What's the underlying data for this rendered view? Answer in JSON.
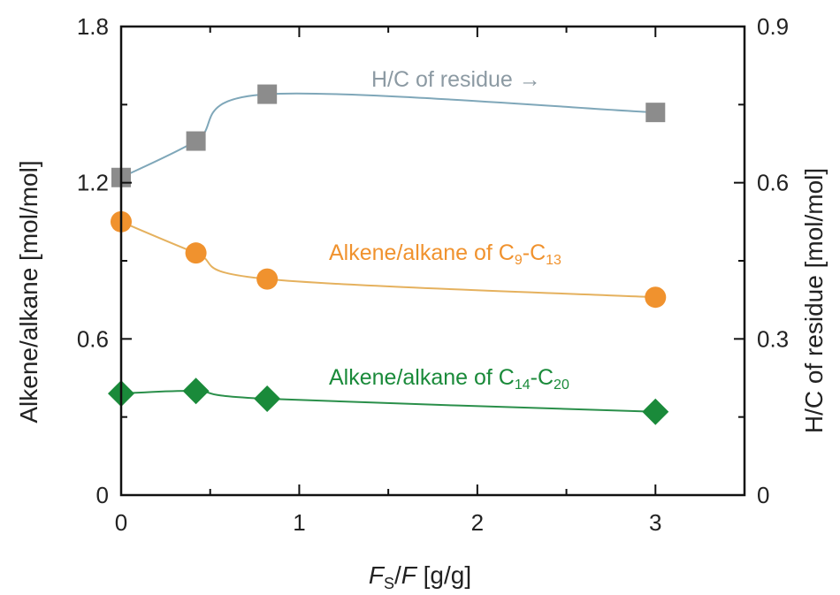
{
  "chart_data": {
    "type": "scatter",
    "x": [
      0,
      0.42,
      0.82,
      3
    ],
    "xlim": [
      0,
      3.5
    ],
    "x_ticks": [
      "0",
      "1",
      "2",
      "3"
    ],
    "ylim_left": [
      0,
      1.8
    ],
    "y_left_ticks": [
      "0",
      "0.6",
      "1.2",
      "1.8"
    ],
    "ylim_right": [
      0,
      0.9
    ],
    "y_right_ticks": [
      "0",
      "0.3",
      "0.6",
      "0.9"
    ],
    "xlabel": {
      "italic1": "F",
      "sub": "S",
      "slash": "/",
      "italic2": "F",
      "rest": " [g/g]"
    },
    "ylabel_left": "Alkene/alkane [mol/mol]",
    "ylabel_right": "H/C of residue [mol/mol]",
    "grid": false,
    "series": [
      {
        "name": "H/C of residue",
        "axis": "right",
        "marker": "square",
        "color": "#8c8c8c",
        "line_color": "#7fa7b9",
        "values": [
          0.61,
          0.68,
          0.77,
          0.735
        ]
      },
      {
        "name": "Alkene/alkane of C9-C13",
        "axis": "left",
        "marker": "circle",
        "color": "#f0922e",
        "line_color": "#e5b15e",
        "values": [
          1.05,
          0.93,
          0.83,
          0.76
        ]
      },
      {
        "name": "Alkene/alkane of C14-C20",
        "axis": "left",
        "marker": "diamond",
        "color": "#1a8a3a",
        "line_color": "#2a8f4a",
        "values": [
          0.39,
          0.4,
          0.37,
          0.32
        ]
      }
    ],
    "annotations": {
      "hc": {
        "text": "H/C of residue →",
        "color": "#8c9aa3"
      },
      "c9": {
        "prefix": "Alkene/alkane of C",
        "sub1": "9",
        "dash": "-C",
        "sub2": "13",
        "color": "#f0922e"
      },
      "c14": {
        "prefix": "Alkene/alkane of C",
        "sub1": "14",
        "dash": "-C",
        "sub2": "20",
        "color": "#1a8a3a"
      }
    }
  }
}
